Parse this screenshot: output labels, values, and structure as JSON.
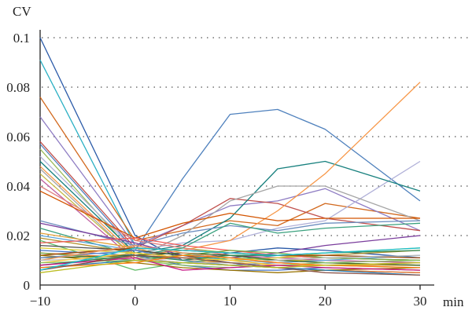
{
  "chart_data": {
    "type": "line",
    "title": "",
    "xlabel": "min",
    "ylabel": "CV",
    "x": [
      -10,
      0,
      5,
      10,
      15,
      20,
      30
    ],
    "x_ticks": [
      -10,
      0,
      10,
      20,
      30
    ],
    "x_tick_labels": [
      "−10",
      "0",
      "10",
      "20",
      "30"
    ],
    "y_ticks": [
      0,
      0.02,
      0.04,
      0.06,
      0.08,
      0.1
    ],
    "y_tick_labels": [
      "0",
      "0.02",
      "0.04",
      "0.06",
      "0.08",
      "0.1"
    ],
    "xlim": [
      -10,
      30
    ],
    "ylim": [
      0,
      0.1
    ],
    "grid": "horizontal-dotted",
    "series": [
      {
        "color": "#2a5aa8",
        "values": [
          0.1,
          0.02,
          0.01,
          0.013,
          0.015,
          0.014,
          0.011
        ]
      },
      {
        "color": "#2bb0c4",
        "values": [
          0.091,
          0.016,
          0.013,
          0.01,
          0.012,
          0.011,
          0.01
        ]
      },
      {
        "color": "#d2691e",
        "values": [
          0.076,
          0.018,
          0.022,
          0.026,
          0.024,
          0.033,
          0.027
        ]
      },
      {
        "color": "#8e7cc3",
        "values": [
          0.068,
          0.016,
          0.024,
          0.032,
          0.034,
          0.039,
          0.022
        ]
      },
      {
        "color": "#c0504d",
        "values": [
          0.058,
          0.015,
          0.024,
          0.035,
          0.033,
          0.027,
          0.022
        ]
      },
      {
        "color": "#4f81bd",
        "values": [
          0.057,
          0.014,
          0.043,
          0.069,
          0.071,
          0.063,
          0.034
        ]
      },
      {
        "color": "#9bbb59",
        "values": [
          0.055,
          0.012,
          0.015,
          0.013,
          0.012,
          0.011,
          0.01
        ]
      },
      {
        "color": "#b0b0d8",
        "values": [
          0.052,
          0.014,
          0.017,
          0.018,
          0.023,
          0.026,
          0.05
        ]
      },
      {
        "color": "#17807e",
        "values": [
          0.05,
          0.013,
          0.016,
          0.027,
          0.047,
          0.05,
          0.038
        ]
      },
      {
        "color": "#f79646",
        "values": [
          0.048,
          0.012,
          0.014,
          0.018,
          0.03,
          0.045,
          0.082
        ]
      },
      {
        "color": "#a5a5a5",
        "values": [
          0.047,
          0.011,
          0.02,
          0.034,
          0.04,
          0.04,
          0.026
        ]
      },
      {
        "color": "#c4b842",
        "values": [
          0.045,
          0.011,
          0.012,
          0.011,
          0.01,
          0.01,
          0.009
        ]
      },
      {
        "color": "#bf5fa0",
        "values": [
          0.043,
          0.01,
          0.011,
          0.012,
          0.011,
          0.01,
          0.009
        ]
      },
      {
        "color": "#e08080",
        "values": [
          0.04,
          0.018,
          0.015,
          0.012,
          0.01,
          0.009,
          0.008
        ]
      },
      {
        "color": "#d35400",
        "values": [
          0.038,
          0.019,
          0.025,
          0.029,
          0.026,
          0.027,
          0.027
        ]
      },
      {
        "color": "#6c8ebf",
        "values": [
          0.026,
          0.016,
          0.021,
          0.024,
          0.022,
          0.025,
          0.026
        ]
      },
      {
        "color": "#7a3d9c",
        "values": [
          0.025,
          0.017,
          0.012,
          0.011,
          0.013,
          0.016,
          0.02
        ]
      },
      {
        "color": "#3aa17e",
        "values": [
          0.023,
          0.012,
          0.015,
          0.025,
          0.021,
          0.023,
          0.025
        ]
      },
      {
        "color": "#e2a23b",
        "values": [
          0.021,
          0.015,
          0.01,
          0.009,
          0.008,
          0.008,
          0.008
        ]
      },
      {
        "color": "#5da5da",
        "values": [
          0.02,
          0.014,
          0.012,
          0.01,
          0.009,
          0.01,
          0.012
        ]
      },
      {
        "color": "#b2912f",
        "values": [
          0.019,
          0.013,
          0.011,
          0.01,
          0.011,
          0.012,
          0.014
        ]
      },
      {
        "color": "#60bd68",
        "values": [
          0.018,
          0.006,
          0.009,
          0.011,
          0.01,
          0.009,
          0.008
        ]
      },
      {
        "color": "#f15854",
        "values": [
          0.017,
          0.019,
          0.016,
          0.014,
          0.012,
          0.011,
          0.01
        ]
      },
      {
        "color": "#4d4d4d",
        "values": [
          0.016,
          0.014,
          0.012,
          0.009,
          0.007,
          0.006,
          0.005
        ]
      },
      {
        "color": "#decf3f",
        "values": [
          0.015,
          0.013,
          0.011,
          0.01,
          0.011,
          0.013,
          0.015
        ]
      },
      {
        "color": "#4472c4",
        "values": [
          0.014,
          0.012,
          0.008,
          0.006,
          0.006,
          0.007,
          0.006
        ]
      },
      {
        "color": "#ed7d31",
        "values": [
          0.013,
          0.011,
          0.009,
          0.008,
          0.007,
          0.006,
          0.005
        ]
      },
      {
        "color": "#70ad47",
        "values": [
          0.013,
          0.01,
          0.012,
          0.014,
          0.013,
          0.011,
          0.01
        ]
      },
      {
        "color": "#9e480e",
        "values": [
          0.012,
          0.015,
          0.014,
          0.013,
          0.012,
          0.012,
          0.011
        ]
      },
      {
        "color": "#997300",
        "values": [
          0.012,
          0.009,
          0.007,
          0.006,
          0.005,
          0.006,
          0.007
        ]
      },
      {
        "color": "#43682b",
        "values": [
          0.011,
          0.012,
          0.013,
          0.012,
          0.01,
          0.009,
          0.008
        ]
      },
      {
        "color": "#698ed0",
        "values": [
          0.011,
          0.014,
          0.01,
          0.008,
          0.009,
          0.008,
          0.007
        ]
      },
      {
        "color": "#f1975a",
        "values": [
          0.01,
          0.016,
          0.013,
          0.011,
          0.009,
          0.008,
          0.009
        ]
      },
      {
        "color": "#b7b7b7",
        "values": [
          0.01,
          0.011,
          0.009,
          0.009,
          0.01,
          0.011,
          0.012
        ]
      },
      {
        "color": "#ffcd33",
        "values": [
          0.009,
          0.013,
          0.011,
          0.01,
          0.008,
          0.007,
          0.006
        ]
      },
      {
        "color": "#8cc168",
        "values": [
          0.009,
          0.01,
          0.008,
          0.007,
          0.008,
          0.009,
          0.01
        ]
      },
      {
        "color": "#2e8b57",
        "values": [
          0.008,
          0.012,
          0.01,
          0.012,
          0.012,
          0.013,
          0.014
        ]
      },
      {
        "color": "#c71585",
        "values": [
          0.008,
          0.011,
          0.006,
          0.007,
          0.008,
          0.007,
          0.006
        ]
      },
      {
        "color": "#1f77b4",
        "values": [
          0.007,
          0.01,
          0.009,
          0.008,
          0.007,
          0.006,
          0.004
        ]
      },
      {
        "color": "#ff7f0e",
        "values": [
          0.007,
          0.009,
          0.012,
          0.011,
          0.009,
          0.008,
          0.007
        ]
      },
      {
        "color": "#8c564b",
        "values": [
          0.006,
          0.012,
          0.011,
          0.009,
          0.007,
          0.005,
          0.004
        ]
      },
      {
        "color": "#17becf",
        "values": [
          0.006,
          0.015,
          0.014,
          0.013,
          0.012,
          0.013,
          0.015
        ]
      },
      {
        "color": "#bcbd22",
        "values": [
          0.005,
          0.01,
          0.009,
          0.008,
          0.007,
          0.008,
          0.009
        ]
      }
    ]
  }
}
